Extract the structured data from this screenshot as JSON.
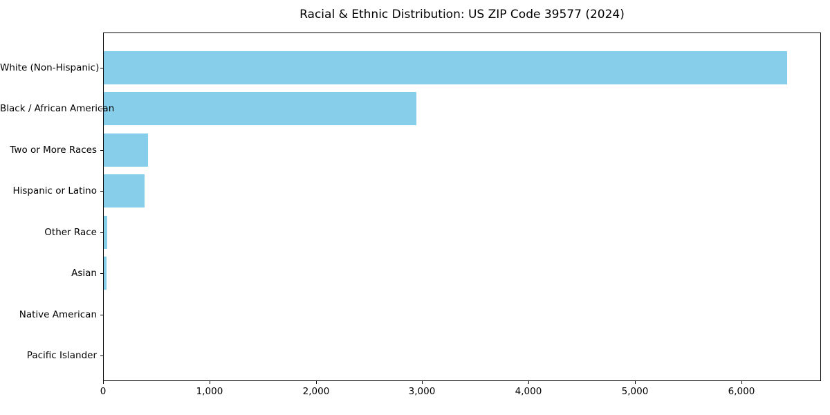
{
  "chart_data": {
    "type": "bar",
    "orientation": "horizontal",
    "title": "Racial & Ethnic Distribution: US ZIP Code 39577 (2024)",
    "categories": [
      "White (Non-Hispanic)",
      "Black / African American",
      "Two or More Races",
      "Hispanic or Latino",
      "Other Race",
      "Asian",
      "Native American",
      "Pacific Islander"
    ],
    "values": [
      6425,
      2937,
      416,
      386,
      32,
      23,
      0,
      0
    ],
    "xlabel": "",
    "ylabel": "",
    "xlim": [
      0,
      6750
    ],
    "x_ticks": [
      0,
      1000,
      2000,
      3000,
      4000,
      5000,
      6000
    ],
    "x_tick_labels": [
      "0",
      "1,000",
      "2,000",
      "3,000",
      "4,000",
      "5,000",
      "6,000"
    ],
    "bar_color": "#87CEEB",
    "background_color": "#ffffff",
    "axis_color": "#000000",
    "grid": false,
    "legend": null
  }
}
